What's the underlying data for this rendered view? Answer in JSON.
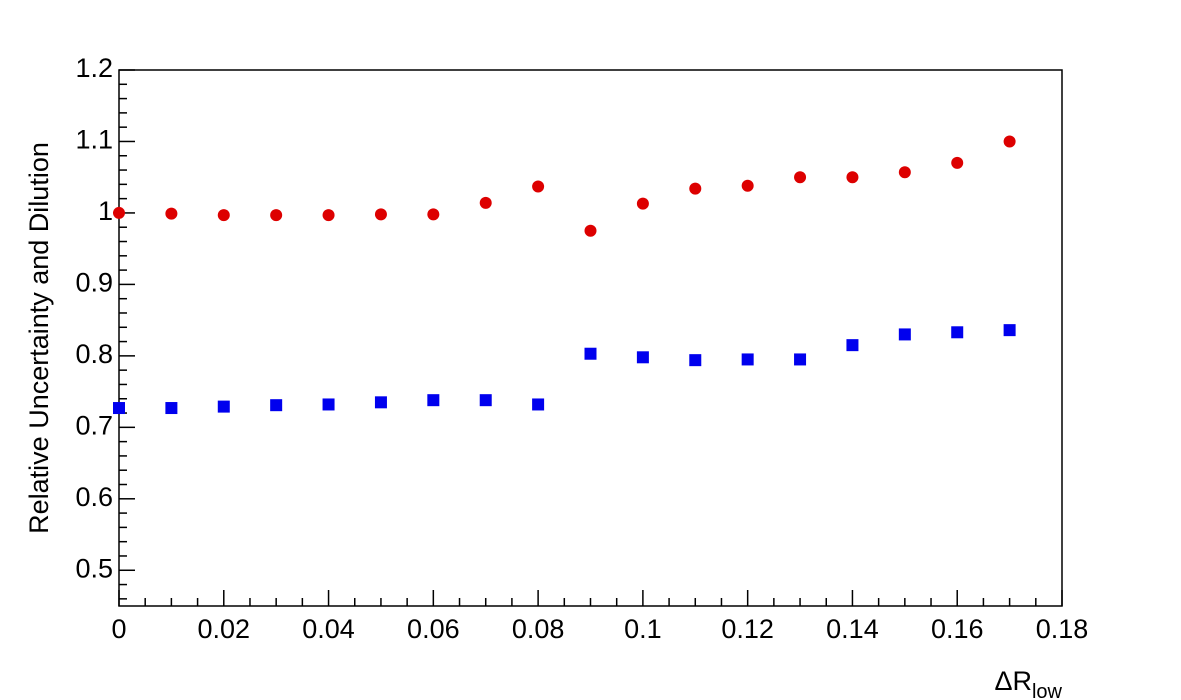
{
  "chart_data": {
    "type": "scatter",
    "y_label": "Relative Uncertainty and Dilution",
    "x_label": {
      "main": "ΔR",
      "sub": "low"
    },
    "xlim": [
      0,
      0.18
    ],
    "xticks": [
      0,
      0.02,
      0.04,
      0.06,
      0.08,
      0.1,
      0.12,
      0.14,
      0.16,
      0.18
    ],
    "ylim": [
      0.45,
      1.2
    ],
    "yticks": [
      0.5,
      0.6,
      0.7,
      0.8,
      0.9,
      1,
      1.1,
      1.2
    ],
    "grid": false,
    "series": [
      {
        "color": "#dd0000",
        "marker": "circle",
        "x": [
          0,
          0.01,
          0.02,
          0.03,
          0.04,
          0.05,
          0.06,
          0.07,
          0.08,
          0.09,
          0.1,
          0.11,
          0.12,
          0.13,
          0.14,
          0.15,
          0.16,
          0.17
        ],
        "values": [
          1.0,
          0.999,
          0.997,
          0.997,
          0.997,
          0.998,
          0.998,
          1.014,
          1.037,
          0.975,
          1.013,
          1.034,
          1.038,
          1.05,
          1.05,
          1.057,
          1.07,
          1.1
        ]
      },
      {
        "color": "#0000ee",
        "marker": "square",
        "x": [
          0,
          0.01,
          0.02,
          0.03,
          0.04,
          0.05,
          0.06,
          0.07,
          0.08,
          0.09,
          0.1,
          0.11,
          0.12,
          0.13,
          0.14,
          0.15,
          0.16,
          0.17
        ],
        "values": [
          0.727,
          0.727,
          0.729,
          0.731,
          0.732,
          0.735,
          0.738,
          0.738,
          0.732,
          0.803,
          0.798,
          0.794,
          0.795,
          0.795,
          0.815,
          0.83,
          0.833,
          0.836
        ]
      }
    ]
  }
}
